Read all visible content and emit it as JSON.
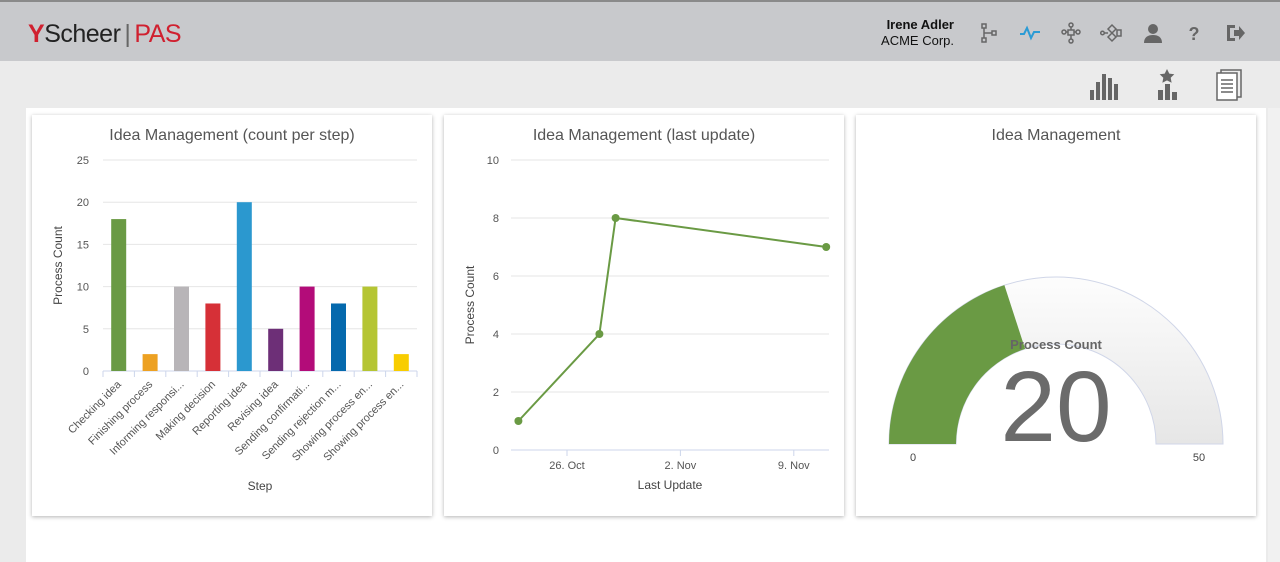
{
  "header": {
    "logo": {
      "mark": "Y",
      "brand": "Scheer",
      "separator": "|",
      "product": "PAS"
    },
    "user_name": "Irene Adler",
    "company": "ACME Corp.",
    "icons": [
      "process-model-icon",
      "monitoring-icon",
      "hierarchy-icon",
      "workflow-icon",
      "user-icon",
      "help-icon",
      "logout-icon"
    ],
    "active_icon_color": "#2a9bd5"
  },
  "toolbar": {
    "icons": [
      "bar-chart-icon",
      "ranking-icon",
      "report-icon"
    ]
  },
  "chart_data": [
    {
      "type": "bar",
      "title": "Idea Management (count per step)",
      "xlabel": "Step",
      "ylabel": "Process Count",
      "categories": [
        "Checking idea",
        "Finishing process",
        "Informing responsi...",
        "Making decision",
        "Reporting idea",
        "Revising idea",
        "Sending confirmati...",
        "Sending rejection m...",
        "Showing process en...",
        "Showing process en..."
      ],
      "values": [
        18,
        2,
        10,
        8,
        20,
        5,
        10,
        8,
        10,
        2
      ],
      "colors": [
        "#6a9a44",
        "#eda122",
        "#b8b5b8",
        "#d63037",
        "#2b98cf",
        "#6d2f77",
        "#b30c79",
        "#0569ad",
        "#b5c533",
        "#f8cd00"
      ],
      "ylim": [
        0,
        25
      ],
      "yticks": [
        0,
        5,
        10,
        15,
        20,
        25
      ],
      "grid": true
    },
    {
      "type": "line",
      "title": "Idea Management (last update)",
      "xlabel": "Last Update",
      "ylabel": "Process Count",
      "x": [
        "2023-10-23",
        "2023-10-28",
        "2023-10-29",
        "2023-11-11"
      ],
      "values": [
        1,
        4,
        8,
        7
      ],
      "xticks": [
        "26. Oct",
        "2. Nov",
        "9. Nov"
      ],
      "ylim": [
        0,
        10
      ],
      "yticks": [
        0,
        2,
        4,
        6,
        8,
        10
      ],
      "color": "#6a9a44",
      "grid": true
    },
    {
      "type": "gauge",
      "title": "Idea Management",
      "label": "Process Count",
      "value": 20,
      "min": 0,
      "max": 50,
      "color": "#6a9a44"
    }
  ]
}
